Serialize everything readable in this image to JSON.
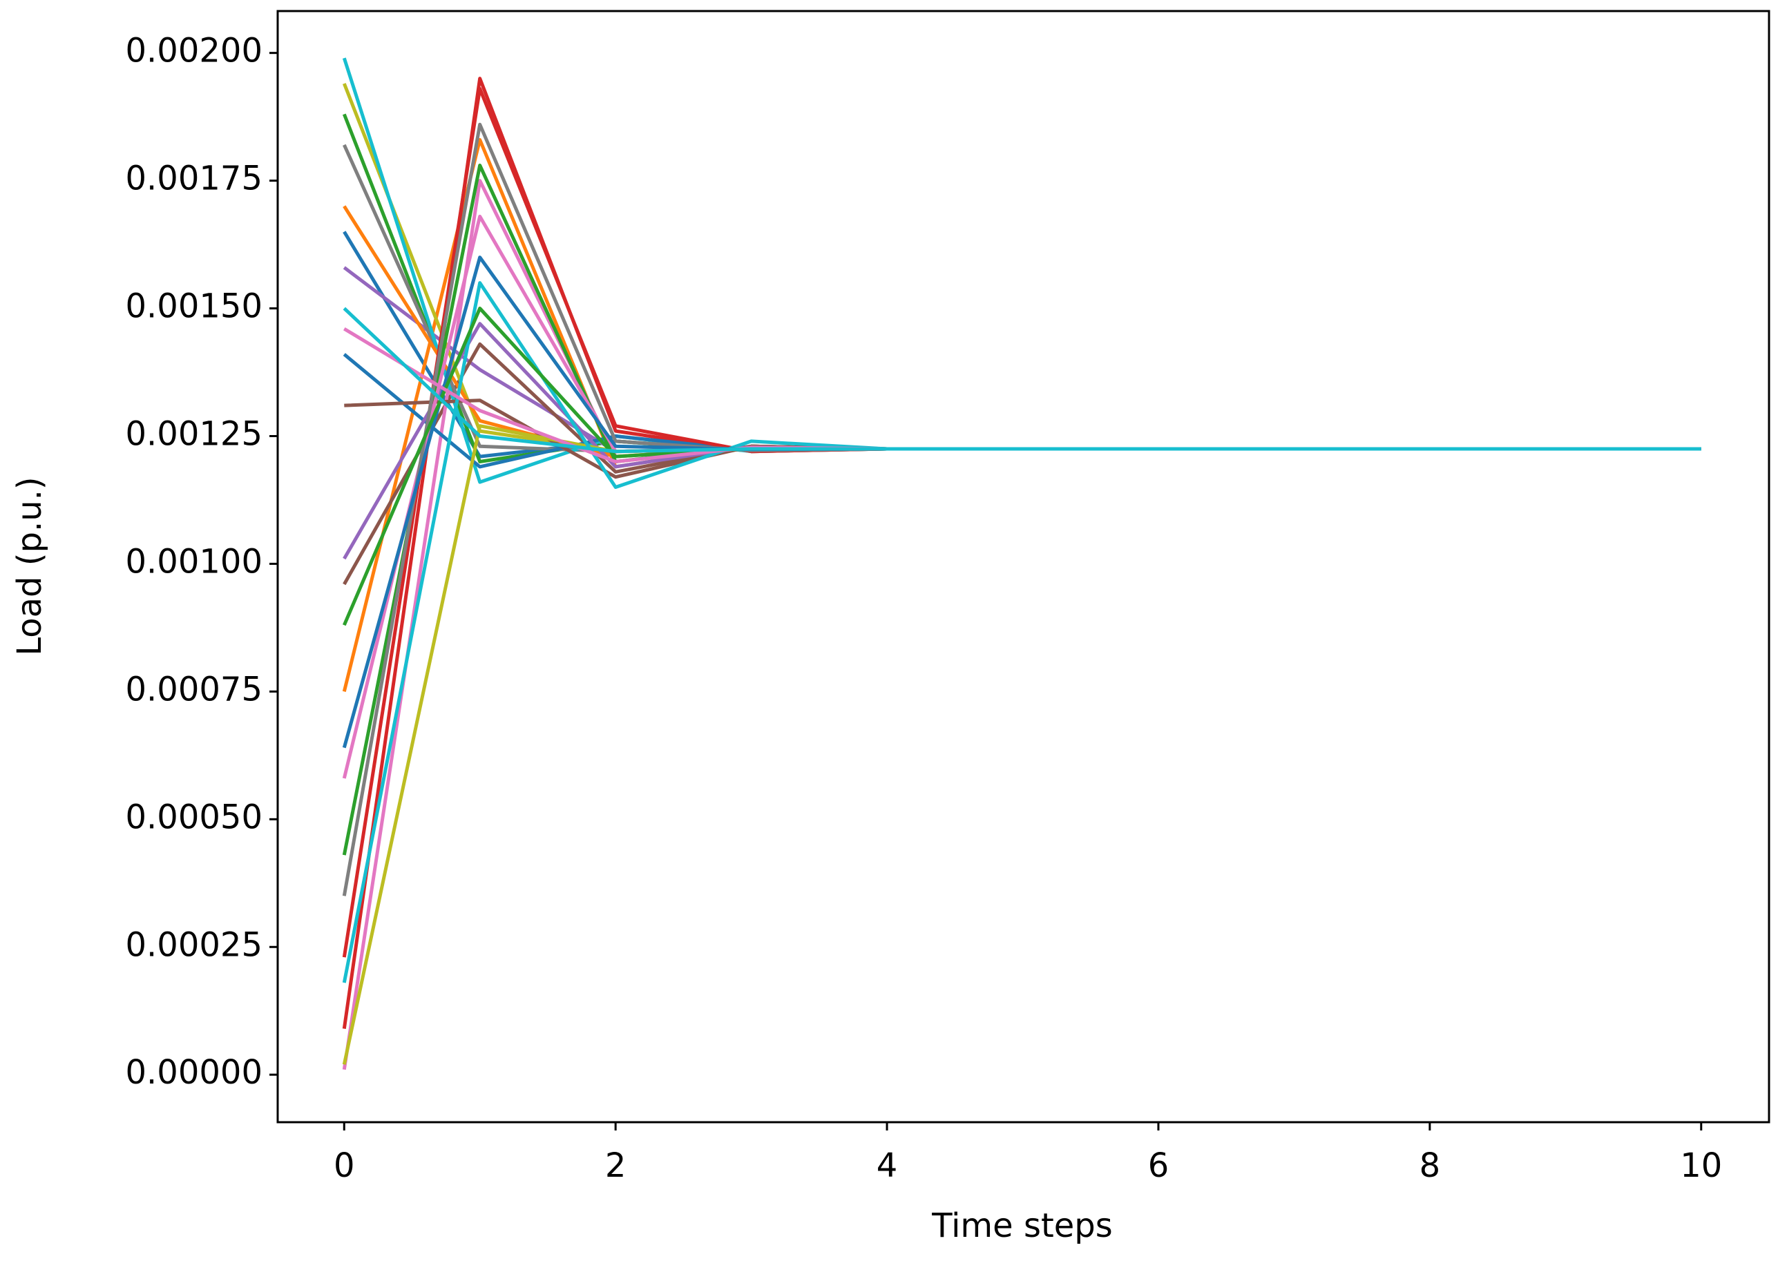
{
  "chart_data": {
    "type": "line",
    "x_label": "Time steps",
    "y_label": "Load (p.u.)",
    "x": [
      0,
      1,
      2,
      3,
      4,
      5,
      6,
      7,
      8,
      9,
      10
    ],
    "xlim": [
      -0.49,
      10.5
    ],
    "xticks": [
      0,
      2,
      4,
      6,
      8,
      10
    ],
    "ylim": [
      -9.3e-05,
      0.002082
    ],
    "yticks": [
      {
        "value": 0,
        "label": "0.00000"
      },
      {
        "value": 0.00025,
        "label": "0.00025"
      },
      {
        "value": 0.0005,
        "label": "0.00050"
      },
      {
        "value": 0.00075,
        "label": "0.00075"
      },
      {
        "value": 0.001,
        "label": "0.00100"
      },
      {
        "value": 0.00125,
        "label": "0.00125"
      },
      {
        "value": 0.0015,
        "label": "0.00150"
      },
      {
        "value": 0.00175,
        "label": "0.00175"
      },
      {
        "value": 0.002,
        "label": "0.00200"
      }
    ],
    "grid": false,
    "series": [
      {
        "color": "#1f77b4",
        "values": [
          0.00165,
          0.00121,
          0.00124,
          0.001222,
          0.001225,
          0.001225,
          0.001225,
          0.001225,
          0.001225,
          0.001225,
          0.001225
        ]
      },
      {
        "color": "#ff7f0e",
        "values": [
          0.00075,
          0.00183,
          0.00119,
          0.00123,
          0.001225,
          0.001225,
          0.001225,
          0.001225,
          0.001225,
          0.001225,
          0.001225
        ]
      },
      {
        "color": "#2ca02c",
        "values": [
          0.00188,
          0.0012,
          0.00124,
          0.001221,
          0.001225,
          0.001225,
          0.001225,
          0.001225,
          0.001225,
          0.001225,
          0.001225
        ]
      },
      {
        "color": "#d62728",
        "values": [
          9e-05,
          0.00195,
          0.00126,
          0.00122,
          0.001225,
          0.001225,
          0.001225,
          0.001225,
          0.001225,
          0.001225,
          0.001225
        ]
      },
      {
        "color": "#9467bd",
        "values": [
          0.00158,
          0.00138,
          0.00122,
          0.001226,
          0.001225,
          0.001225,
          0.001225,
          0.001225,
          0.001225,
          0.001225,
          0.001225
        ]
      },
      {
        "color": "#8c564b",
        "values": [
          0.00096,
          0.00143,
          0.00118,
          0.00123,
          0.001225,
          0.001225,
          0.001225,
          0.001225,
          0.001225,
          0.001225,
          0.001225
        ]
      },
      {
        "color": "#e377c2",
        "values": [
          1e-05,
          0.00175,
          0.00121,
          0.001227,
          0.001225,
          0.001225,
          0.001225,
          0.001225,
          0.001225,
          0.001225,
          0.001225
        ]
      },
      {
        "color": "#7f7f7f",
        "values": [
          0.00182,
          0.00123,
          0.00122,
          0.001225,
          0.001225,
          0.001225,
          0.001225,
          0.001225,
          0.001225,
          0.001225,
          0.001225
        ]
      },
      {
        "color": "#bcbd22",
        "values": [
          0.00194,
          0.00126,
          0.00122,
          0.001225,
          0.001225,
          0.001225,
          0.001225,
          0.001225,
          0.001225,
          0.001225,
          0.001225
        ]
      },
      {
        "color": "#17becf",
        "values": [
          0.00199,
          0.00116,
          0.00125,
          0.00122,
          0.001225,
          0.001225,
          0.001225,
          0.001225,
          0.001225,
          0.001225,
          0.001225
        ]
      },
      {
        "color": "#1f77b4",
        "values": [
          0.00141,
          0.00119,
          0.00125,
          0.001222,
          0.001225,
          0.001225,
          0.001225,
          0.001225,
          0.001225,
          0.001225,
          0.001225
        ]
      },
      {
        "color": "#ff7f0e",
        "values": [
          0.0017,
          0.00128,
          0.00121,
          0.001227,
          0.001225,
          0.001225,
          0.001225,
          0.001225,
          0.001225,
          0.001225,
          0.001225
        ]
      },
      {
        "color": "#2ca02c",
        "values": [
          0.00043,
          0.00178,
          0.0012,
          0.00123,
          0.001225,
          0.001225,
          0.001225,
          0.001225,
          0.001225,
          0.001225,
          0.001225
        ]
      },
      {
        "color": "#d62728",
        "values": [
          0.00023,
          0.00193,
          0.00127,
          0.00122,
          0.001225,
          0.001225,
          0.001225,
          0.001225,
          0.001225,
          0.001225,
          0.001225
        ]
      },
      {
        "color": "#9467bd",
        "values": [
          0.00101,
          0.00147,
          0.00119,
          0.00123,
          0.001225,
          0.001225,
          0.001225,
          0.001225,
          0.001225,
          0.001225,
          0.001225
        ]
      },
      {
        "color": "#8c564b",
        "values": [
          0.00131,
          0.00132,
          0.00117,
          0.00123,
          0.001225,
          0.001225,
          0.001225,
          0.001225,
          0.001225,
          0.001225,
          0.001225
        ]
      },
      {
        "color": "#e377c2",
        "values": [
          0.00058,
          0.00168,
          0.00122,
          0.001226,
          0.001225,
          0.001225,
          0.001225,
          0.001225,
          0.001225,
          0.001225,
          0.001225
        ]
      },
      {
        "color": "#7f7f7f",
        "values": [
          0.00035,
          0.00186,
          0.00124,
          0.001222,
          0.001225,
          0.001225,
          0.001225,
          0.001225,
          0.001225,
          0.001225,
          0.001225
        ]
      },
      {
        "color": "#bcbd22",
        "values": [
          2e-05,
          0.00127,
          0.00122,
          0.001225,
          0.001225,
          0.001225,
          0.001225,
          0.001225,
          0.001225,
          0.001225,
          0.001225
        ]
      },
      {
        "color": "#17becf",
        "values": [
          0.00018,
          0.00155,
          0.00115,
          0.00124,
          0.001225,
          0.001225,
          0.001225,
          0.001225,
          0.001225,
          0.001225,
          0.001225
        ]
      },
      {
        "color": "#1f77b4",
        "values": [
          0.00064,
          0.0016,
          0.00123,
          0.001224,
          0.001225,
          0.001225,
          0.001225,
          0.001225,
          0.001225,
          0.001225,
          0.001225
        ]
      },
      {
        "color": "#2ca02c",
        "values": [
          0.00088,
          0.0015,
          0.00121,
          0.001226,
          0.001225,
          0.001225,
          0.001225,
          0.001225,
          0.001225,
          0.001225,
          0.001225
        ]
      },
      {
        "color": "#e377c2",
        "values": [
          0.00146,
          0.0013,
          0.0012,
          0.001228,
          0.001225,
          0.001225,
          0.001225,
          0.001225,
          0.001225,
          0.001225,
          0.001225
        ]
      },
      {
        "color": "#17becf",
        "values": [
          0.0015,
          0.00125,
          0.00122,
          0.001225,
          0.001225,
          0.001225,
          0.001225,
          0.001225,
          0.001225,
          0.001225,
          0.001225
        ]
      }
    ]
  }
}
